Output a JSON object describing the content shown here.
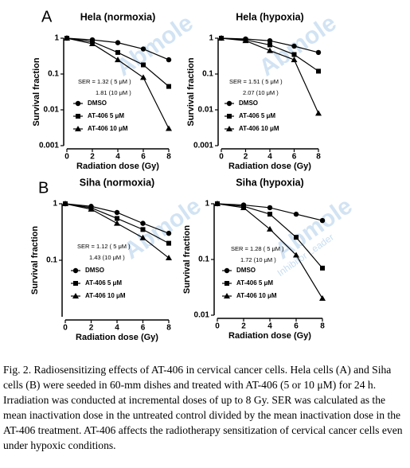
{
  "panel_labels": [
    "A",
    "B"
  ],
  "watermark": "Abmole",
  "watermark_tagline": "Inhibitor Leader",
  "caption": "Fig. 2. Radiosensitizing effects of AT-406 in cervical cancer cells. Hela cells (A) and Siha cells (B) were seeded in 60-mm dishes and treated with AT-406 (5 or 10 μM) for 24 h. Irradiation was conducted at incremental doses of up to 8 Gy. SER was calculated as the mean inactivation dose in the untreated control divided by the mean inactivation dose in the AT-406 treatment. AT-406 affects the radiotherapy sensitization of cervical cancer cells even under hypoxic conditions.",
  "chart_data": [
    {
      "type": "line",
      "title": "Hela (normoxia)",
      "x_label": "Radiation dose (Gy)",
      "y_label": "Survival fraction",
      "log_y": true,
      "x": [
        0,
        2,
        4,
        6,
        8
      ],
      "xlim": [
        0,
        8
      ],
      "xticks": [
        0,
        2,
        4,
        6,
        8
      ],
      "ylim": [
        0.001,
        1
      ],
      "yticks": [
        1,
        0.1,
        0.01,
        0.001
      ],
      "annotations": [
        "SER = 1.32 ( 5 μM )",
        "1.81 (10 μM )"
      ],
      "series": [
        {
          "name": "DMSO",
          "color": "#000000",
          "marker": "circle",
          "values": [
            1,
            0.9,
            0.75,
            0.5,
            0.25
          ]
        },
        {
          "name": "AT-406  5 μM",
          "color": "#000000",
          "marker": "square",
          "values": [
            1,
            0.8,
            0.4,
            0.18,
            0.045
          ]
        },
        {
          "name": "AT-406  10 μM",
          "color": "#000000",
          "marker": "triangle",
          "values": [
            1,
            0.7,
            0.25,
            0.08,
            0.003
          ]
        }
      ]
    },
    {
      "type": "line",
      "title": "Hela (hypoxia)",
      "x_label": "Radiation dose (Gy)",
      "y_label": "Survival fraction",
      "log_y": true,
      "x": [
        0,
        2,
        4,
        6,
        8
      ],
      "xlim": [
        0,
        8
      ],
      "xticks": [
        0,
        2,
        4,
        6,
        8
      ],
      "ylim": [
        0.001,
        1
      ],
      "yticks": [
        1,
        0.1,
        0.01,
        0.001
      ],
      "annotations": [
        "SER = 1.51 ( 5 μM )",
        "2.07 (10 μM )"
      ],
      "series": [
        {
          "name": "DMSO",
          "color": "#000000",
          "marker": "circle",
          "values": [
            1,
            0.95,
            0.85,
            0.6,
            0.4
          ]
        },
        {
          "name": "AT-406  5 μM",
          "color": "#000000",
          "marker": "square",
          "values": [
            1,
            0.9,
            0.65,
            0.35,
            0.12
          ]
        },
        {
          "name": "AT-406  10 μM",
          "color": "#000000",
          "marker": "triangle",
          "values": [
            1,
            0.85,
            0.45,
            0.25,
            0.008
          ]
        }
      ]
    },
    {
      "type": "line",
      "title": "Siha (normoxia)",
      "x_label": "Radiation dose (Gy)",
      "y_label": "Survival fraction",
      "log_y": true,
      "x": [
        0,
        2,
        4,
        6,
        8
      ],
      "xlim": [
        0,
        8
      ],
      "xticks": [
        0,
        2,
        4,
        6,
        8
      ],
      "ylim": [
        0.01,
        1
      ],
      "yticks": [
        1,
        0.1
      ],
      "annotations": [
        "SER = 1.12 ( 5 μM )",
        "1.43 (10 μM )"
      ],
      "series": [
        {
          "name": "DMSO",
          "color": "#000000",
          "marker": "circle",
          "values": [
            1,
            0.9,
            0.7,
            0.45,
            0.3
          ]
        },
        {
          "name": "AT-406  5 μM",
          "color": "#000000",
          "marker": "square",
          "values": [
            1,
            0.85,
            0.55,
            0.35,
            0.2
          ]
        },
        {
          "name": "AT-406  10 μM",
          "color": "#000000",
          "marker": "triangle",
          "values": [
            1,
            0.8,
            0.45,
            0.25,
            0.11
          ]
        }
      ]
    },
    {
      "type": "line",
      "title": "Siha (hypoxia)",
      "x_label": "Radiation dose (Gy)",
      "y_label": "Survival fraction",
      "log_y": true,
      "x": [
        0,
        2,
        4,
        6,
        8
      ],
      "xlim": [
        0,
        8
      ],
      "xticks": [
        0,
        2,
        4,
        6,
        8
      ],
      "ylim": [
        0.01,
        1
      ],
      "yticks": [
        1,
        0.1,
        0.01
      ],
      "annotations": [
        "SER = 1.28 ( 5 μM )",
        "1.72 (10 μM )"
      ],
      "series": [
        {
          "name": "DMSO",
          "color": "#000000",
          "marker": "circle",
          "values": [
            1,
            0.95,
            0.85,
            0.65,
            0.5
          ]
        },
        {
          "name": "AT-406  5 μM",
          "color": "#000000",
          "marker": "square",
          "values": [
            1,
            0.9,
            0.65,
            0.25,
            0.07
          ]
        },
        {
          "name": "AT-406  10 μM",
          "color": "#000000",
          "marker": "triangle",
          "values": [
            1,
            0.85,
            0.35,
            0.12,
            0.02
          ]
        }
      ]
    }
  ]
}
